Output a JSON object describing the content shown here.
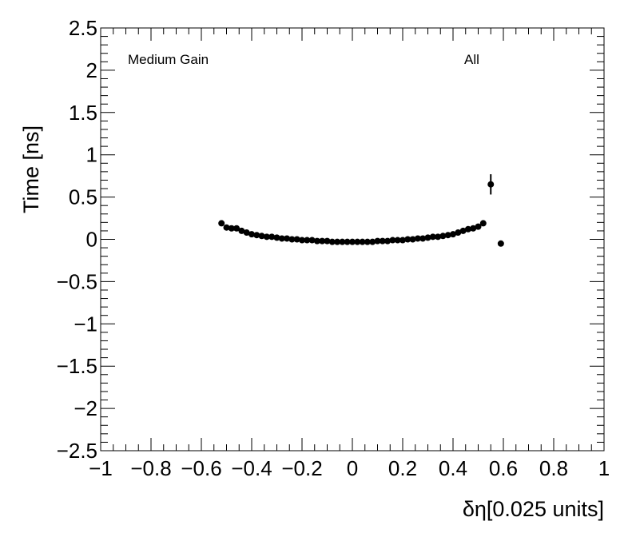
{
  "chart_data": {
    "type": "scatter",
    "x_label": "δη[0.025 units]",
    "y_label": "Time [ns]",
    "annotations": [
      "Medium Gain",
      "All"
    ],
    "xlim": [
      -1,
      1
    ],
    "xticks": [
      {
        "value": -1,
        "label": "−1"
      },
      {
        "value": -0.8,
        "label": "−0.8"
      },
      {
        "value": -0.6,
        "label": "−0.6"
      },
      {
        "value": -0.4,
        "label": "−0.4"
      },
      {
        "value": -0.2,
        "label": "−0.2"
      },
      0,
      0.2,
      0.4,
      0.6,
      0.8,
      1
    ],
    "ylim": [
      -2.5,
      2.5
    ],
    "yticks": [
      {
        "value": -2.5,
        "label": "−2.5"
      },
      {
        "value": -2,
        "label": "−2"
      },
      {
        "value": -1.5,
        "label": "−1.5"
      },
      {
        "value": -1,
        "label": "−1"
      },
      {
        "value": -0.5,
        "label": "−0.5"
      },
      0,
      0.5,
      1,
      1.5,
      2,
      2.5
    ],
    "color": "#000000",
    "x": [
      -0.52,
      -0.5,
      -0.48,
      -0.46,
      -0.44,
      -0.42,
      -0.4,
      -0.38,
      -0.36,
      -0.34,
      -0.32,
      -0.3,
      -0.28,
      -0.26,
      -0.24,
      -0.22,
      -0.2,
      -0.18,
      -0.16,
      -0.14,
      -0.12,
      -0.1,
      -0.08,
      -0.06,
      -0.04,
      -0.02,
      0,
      0.02,
      0.04,
      0.06,
      0.08,
      0.1,
      0.12,
      0.14,
      0.16,
      0.18,
      0.2,
      0.22,
      0.24,
      0.26,
      0.28,
      0.3,
      0.32,
      0.34,
      0.36,
      0.38,
      0.4,
      0.42,
      0.44,
      0.46,
      0.48,
      0.5,
      0.52,
      0.55,
      0.59
    ],
    "values": [
      0.19,
      0.14,
      0.13,
      0.13,
      0.1,
      0.08,
      0.06,
      0.05,
      0.04,
      0.03,
      0.03,
      0.02,
      0.01,
      0.01,
      0.0,
      0.0,
      -0.01,
      -0.01,
      -0.01,
      -0.02,
      -0.02,
      -0.02,
      -0.03,
      -0.03,
      -0.03,
      -0.03,
      -0.03,
      -0.03,
      -0.03,
      -0.03,
      -0.03,
      -0.02,
      -0.02,
      -0.02,
      -0.01,
      -0.01,
      -0.01,
      0.0,
      0.0,
      0.01,
      0.01,
      0.02,
      0.03,
      0.03,
      0.04,
      0.05,
      0.06,
      0.08,
      0.1,
      0.12,
      0.13,
      0.15,
      0.19,
      0.65,
      -0.05
    ],
    "errors": [
      0,
      0,
      0,
      0,
      0,
      0,
      0,
      0,
      0,
      0,
      0,
      0,
      0,
      0,
      0,
      0,
      0,
      0,
      0,
      0,
      0,
      0,
      0,
      0,
      0,
      0,
      0,
      0,
      0,
      0,
      0,
      0,
      0,
      0,
      0,
      0,
      0,
      0,
      0,
      0,
      0,
      0,
      0,
      0,
      0,
      0,
      0,
      0,
      0,
      0,
      0,
      0,
      0,
      0.12,
      0
    ]
  }
}
